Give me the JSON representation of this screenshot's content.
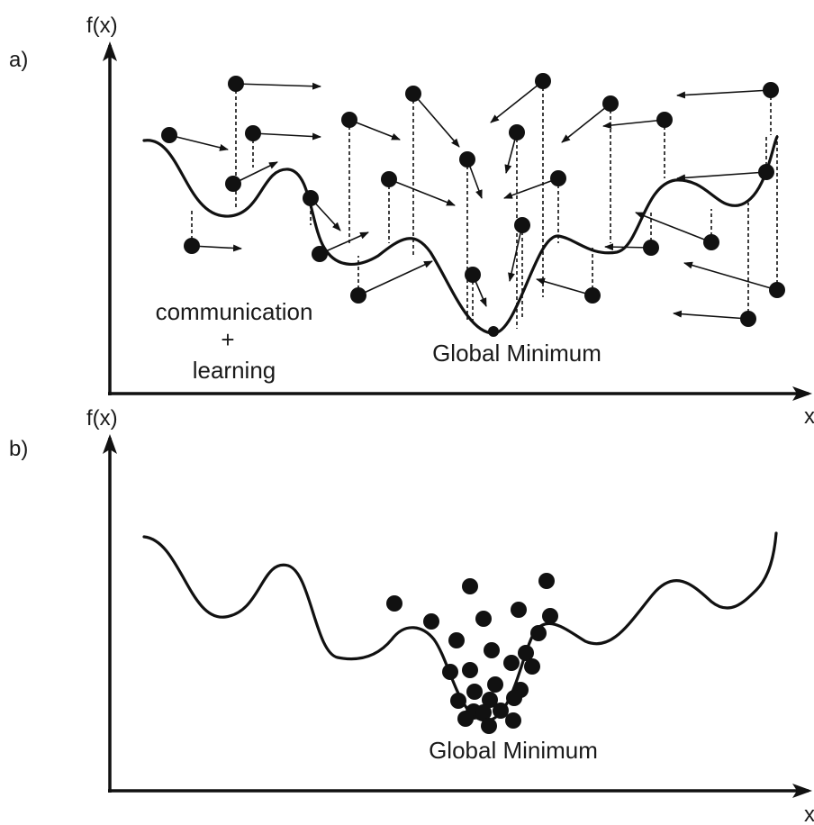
{
  "panels": [
    {
      "letter": "a)",
      "y_axis_label": "f(x)",
      "x_axis_label": "x",
      "note_lines": [
        "communication",
        "+",
        "learning"
      ],
      "minimum_label": "Global Minimum",
      "state": "particles scattered over the landscape, each with a velocity arrow"
    },
    {
      "letter": "b)",
      "y_axis_label": "f(x)",
      "x_axis_label": "x",
      "minimum_label": "Global Minimum",
      "state": "particles clustered in the global minimum"
    }
  ],
  "style": {
    "ink": "#111111",
    "background": "#ffffff"
  }
}
